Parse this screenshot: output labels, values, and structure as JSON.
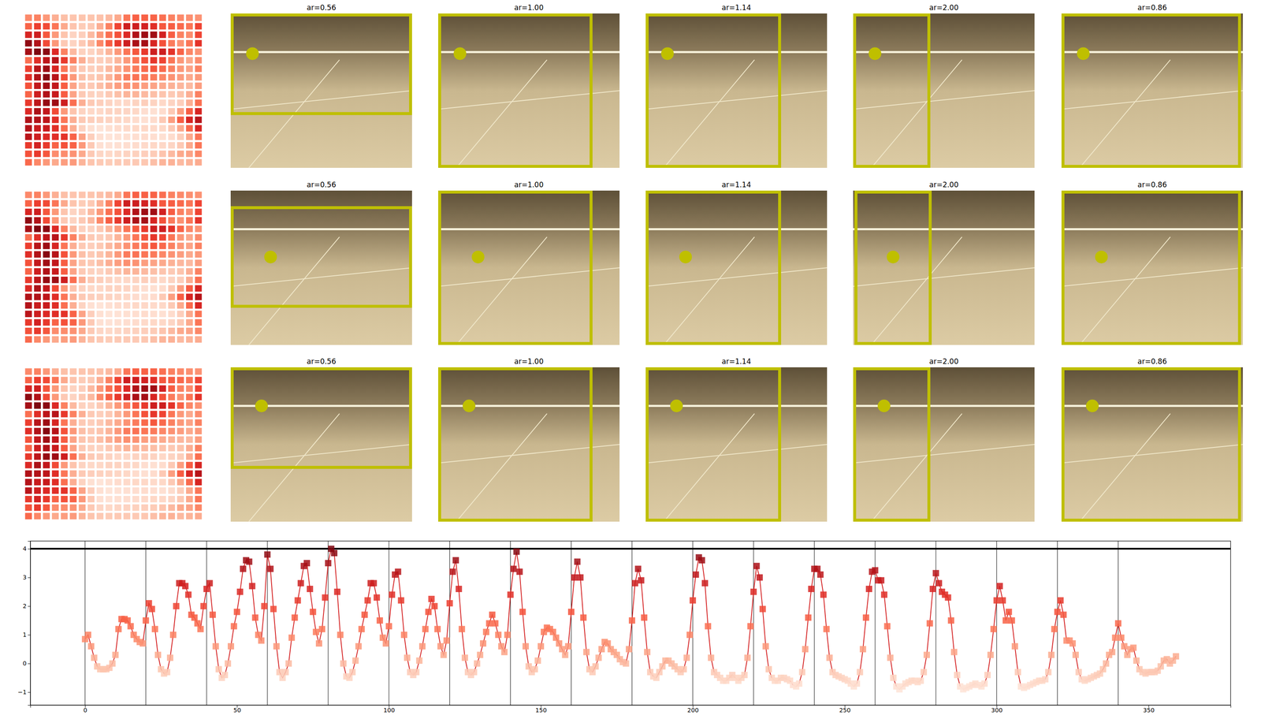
{
  "chart_data": [
    {
      "type": "image_grid",
      "rows": [
        {
          "panels": [
            {
              "value": 0.56,
              "label": "ar=0.56"
            },
            {
              "value": 1.0,
              "label": "ar=1.00"
            },
            {
              "value": 1.14,
              "label": "ar=1.14"
            },
            {
              "value": 2.0,
              "label": "ar=2.00"
            },
            {
              "value": 0.86,
              "label": "ar=0.86"
            }
          ]
        },
        {
          "panels": [
            {
              "value": 0.56,
              "label": "ar=0.56"
            },
            {
              "value": 1.0,
              "label": "ar=1.00"
            },
            {
              "value": 1.14,
              "label": "ar=1.14"
            },
            {
              "value": 2.0,
              "label": "ar=2.00"
            },
            {
              "value": 0.86,
              "label": "ar=0.86"
            }
          ]
        },
        {
          "panels": [
            {
              "value": 0.56,
              "label": "ar=0.56"
            },
            {
              "value": 1.0,
              "label": "ar=1.00"
            },
            {
              "value": 1.14,
              "label": "ar=1.14"
            },
            {
              "value": 2.0,
              "label": "ar=2.00"
            },
            {
              "value": 0.86,
              "label": "ar=0.86"
            }
          ]
        }
      ],
      "color": "#bfbf00"
    },
    {
      "type": "line",
      "color": "#d62728",
      "marker": "square",
      "xlim": [
        -18,
        377
      ],
      "xticks": [
        0,
        50,
        100,
        150,
        200,
        250,
        300,
        350
      ],
      "ylim": [
        -1.45,
        4.27
      ],
      "yticks": [
        {
          "value": -1,
          "label": "−1"
        },
        0,
        1,
        2,
        3,
        4
      ],
      "vlines": [
        0,
        20,
        40,
        60,
        80,
        100,
        120,
        140,
        160,
        180,
        200,
        220,
        240,
        260,
        280,
        300,
        320,
        340
      ],
      "hline": 4,
      "values": [
        0.85,
        1.0,
        0.6,
        0.2,
        -0.1,
        -0.2,
        -0.2,
        -0.2,
        -0.15,
        0.0,
        0.3,
        1.2,
        1.55,
        1.55,
        1.5,
        1.3,
        1.0,
        0.85,
        0.75,
        0.7,
        1.5,
        2.1,
        1.9,
        1.2,
        0.3,
        -0.2,
        -0.35,
        -0.3,
        0.2,
        1.0,
        2.0,
        2.8,
        2.8,
        2.7,
        2.4,
        1.7,
        1.6,
        1.4,
        1.2,
        2.0,
        2.6,
        2.8,
        1.7,
        0.6,
        -0.2,
        -0.5,
        -0.4,
        0.0,
        0.6,
        1.3,
        1.8,
        2.5,
        3.3,
        3.6,
        3.55,
        2.7,
        1.6,
        1.0,
        0.8,
        2.0,
        3.8,
        3.3,
        1.9,
        0.6,
        -0.3,
        -0.5,
        -0.3,
        0.0,
        0.9,
        1.6,
        2.2,
        2.8,
        3.4,
        3.5,
        2.6,
        1.8,
        1.1,
        0.7,
        1.2,
        2.3,
        3.5,
        4.0,
        3.85,
        2.5,
        1.0,
        0.0,
        -0.45,
        -0.5,
        -0.3,
        0.1,
        0.6,
        1.2,
        1.7,
        2.2,
        2.8,
        2.8,
        2.3,
        1.5,
        0.9,
        0.7,
        1.3,
        2.4,
        3.1,
        3.2,
        2.2,
        1.0,
        0.2,
        -0.3,
        -0.4,
        -0.3,
        0.1,
        0.6,
        1.2,
        1.8,
        2.25,
        2.0,
        1.2,
        0.6,
        0.3,
        0.8,
        2.1,
        3.2,
        3.6,
        2.6,
        1.2,
        0.2,
        -0.3,
        -0.4,
        -0.3,
        0.0,
        0.3,
        0.7,
        1.1,
        1.4,
        1.7,
        1.4,
        1.0,
        0.6,
        0.4,
        1.0,
        2.4,
        3.3,
        3.9,
        3.2,
        1.8,
        0.6,
        -0.1,
        -0.3,
        -0.2,
        0.1,
        0.6,
        1.1,
        1.25,
        1.2,
        1.1,
        0.9,
        0.7,
        0.5,
        0.3,
        0.6,
        1.8,
        3.0,
        3.55,
        3.0,
        1.6,
        0.4,
        -0.2,
        -0.3,
        -0.1,
        0.2,
        0.5,
        0.75,
        0.7,
        0.5,
        0.4,
        0.3,
        0.15,
        0.05,
        0.0,
        0.5,
        1.5,
        2.8,
        3.3,
        2.9,
        1.6,
        0.4,
        -0.3,
        -0.45,
        -0.5,
        -0.3,
        -0.1,
        0.1,
        0.1,
        0.0,
        -0.1,
        -0.2,
        -0.3,
        -0.2,
        0.2,
        1.0,
        2.2,
        3.1,
        3.7,
        3.6,
        2.8,
        1.3,
        0.2,
        -0.3,
        -0.4,
        -0.5,
        -0.6,
        -0.6,
        -0.5,
        -0.4,
        -0.5,
        -0.6,
        -0.5,
        -0.4,
        0.2,
        1.3,
        2.5,
        3.4,
        3.0,
        1.9,
        0.6,
        -0.2,
        -0.5,
        -0.6,
        -0.6,
        -0.5,
        -0.5,
        -0.55,
        -0.6,
        -0.75,
        -0.8,
        -0.7,
        -0.3,
        0.5,
        1.6,
        2.6,
        3.3,
        3.3,
        3.1,
        2.4,
        1.2,
        0.2,
        -0.3,
        -0.4,
        -0.45,
        -0.5,
        -0.55,
        -0.6,
        -0.7,
        -0.8,
        -0.7,
        -0.3,
        0.5,
        1.6,
        2.6,
        3.2,
        3.25,
        2.9,
        2.9,
        2.4,
        1.3,
        0.2,
        -0.5,
        -0.8,
        -0.9,
        -0.8,
        -0.7,
        -0.65,
        -0.6,
        -0.6,
        -0.65,
        -0.6,
        -0.3,
        0.3,
        1.4,
        2.6,
        3.15,
        2.8,
        2.5,
        2.4,
        2.3,
        1.5,
        0.4,
        -0.4,
        -0.8,
        -0.9,
        -0.85,
        -0.8,
        -0.75,
        -0.7,
        -0.75,
        -0.8,
        -0.7,
        -0.4,
        0.3,
        1.2,
        2.2,
        2.7,
        2.2,
        1.5,
        1.8,
        1.5,
        0.6,
        -0.3,
        -0.8,
        -0.85,
        -0.8,
        -0.75,
        -0.7,
        -0.65,
        -0.6,
        -0.6,
        -0.55,
        -0.3,
        0.3,
        1.2,
        1.8,
        2.2,
        1.7,
        0.8,
        0.8,
        0.7,
        0.3,
        -0.3,
        -0.55,
        -0.6,
        -0.55,
        -0.5,
        -0.45,
        -0.4,
        -0.35,
        -0.2,
        0.0,
        0.3,
        0.4,
        0.9,
        1.4,
        0.9,
        0.6,
        0.3,
        0.5,
        0.55,
        0.1,
        -0.2,
        -0.3,
        -0.35,
        -0.3,
        -0.3,
        -0.3,
        -0.25,
        -0.1,
        0.1,
        0.15,
        0.0,
        0.1,
        0.25
      ]
    }
  ]
}
